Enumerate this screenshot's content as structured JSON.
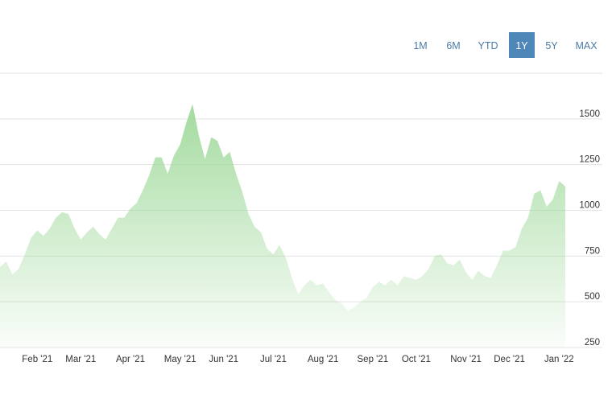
{
  "chart_data": {
    "type": "area",
    "range_buttons": [
      "1M",
      "6M",
      "YTD",
      "1Y",
      "5Y",
      "MAX"
    ],
    "selected_range": "1Y",
    "categories": [
      null,
      null,
      null,
      null,
      null,
      null,
      "Feb '21",
      null,
      null,
      null,
      null,
      null,
      null,
      "Mar '21",
      null,
      null,
      null,
      null,
      null,
      null,
      null,
      "Apr '21",
      null,
      null,
      null,
      null,
      null,
      null,
      null,
      "May '21",
      null,
      null,
      null,
      null,
      null,
      null,
      "Jun '21",
      null,
      null,
      null,
      null,
      null,
      null,
      null,
      "Jul '21",
      null,
      null,
      null,
      null,
      null,
      null,
      null,
      "Aug '21",
      null,
      null,
      null,
      null,
      null,
      null,
      null,
      "Sep '21",
      null,
      null,
      null,
      null,
      null,
      null,
      "Oct '21",
      null,
      null,
      null,
      null,
      null,
      null,
      null,
      "Nov '21",
      null,
      null,
      null,
      null,
      null,
      null,
      "Dec '21",
      null,
      null,
      null,
      null,
      null,
      null,
      null,
      "Jan '22",
      null
    ],
    "series": [
      {
        "color": "#9fd99a",
        "values": [
          690,
          720,
          650,
          680,
          760,
          850,
          890,
          860,
          900,
          960,
          990,
          980,
          900,
          840,
          880,
          910,
          870,
          840,
          900,
          960,
          960,
          1010,
          1040,
          1110,
          1190,
          1290,
          1290,
          1200,
          1300,
          1360,
          1480,
          1580,
          1410,
          1280,
          1400,
          1380,
          1290,
          1320,
          1200,
          1100,
          980,
          910,
          880,
          790,
          760,
          810,
          740,
          630,
          540,
          590,
          620,
          590,
          600,
          550,
          510,
          490,
          450,
          470,
          500,
          520,
          580,
          610,
          590,
          620,
          590,
          640,
          630,
          620,
          640,
          680,
          750,
          760,
          710,
          700,
          730,
          660,
          620,
          670,
          640,
          630,
          700,
          780,
          780,
          800,
          900,
          960,
          1090,
          1110,
          1020,
          1060,
          1160,
          1130
        ]
      }
    ],
    "ylim": [
      250,
      1750
    ],
    "yticks": [
      250,
      500,
      750,
      1000,
      1250,
      1500
    ],
    "grid": true
  }
}
